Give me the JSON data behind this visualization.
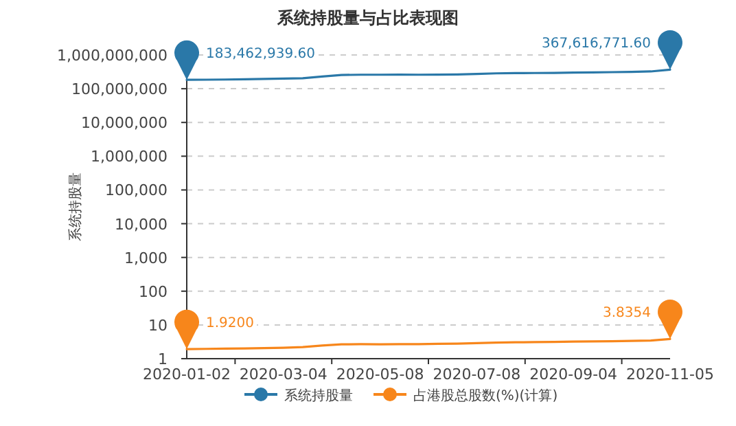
{
  "chart_data": {
    "type": "line",
    "title": "系统持股量与占比表现图",
    "ylabel": "系统持股量",
    "categories": [
      "2020-01-02",
      null,
      null,
      null,
      null,
      "2020-03-04",
      null,
      null,
      null,
      null,
      "2020-05-08",
      null,
      null,
      null,
      null,
      "2020-07-08",
      null,
      null,
      null,
      null,
      "2020-09-04",
      null,
      null,
      null,
      null,
      "2020-11-05"
    ],
    "series": [
      {
        "name": "系统持股量",
        "color": "#2a78a8",
        "values": [
          183462939.6,
          185000000,
          187000000,
          190000000,
          195000000,
          200000000,
          205000000,
          230000000,
          255000000,
          260000000,
          260000000,
          262000000,
          260000000,
          262000000,
          265000000,
          275000000,
          285000000,
          290000000,
          292000000,
          295000000,
          300000000,
          305000000,
          310000000,
          315000000,
          325000000,
          367616771.6
        ]
      },
      {
        "name": "占港股总股数(%)(计算)",
        "color": "#f7861b",
        "values": [
          1.92,
          1.95,
          1.98,
          2.0,
          2.05,
          2.1,
          2.2,
          2.45,
          2.65,
          2.68,
          2.65,
          2.68,
          2.7,
          2.75,
          2.8,
          2.9,
          3.0,
          3.05,
          3.1,
          3.15,
          3.2,
          3.25,
          3.3,
          3.35,
          3.45,
          3.8354
        ]
      }
    ],
    "log": "y",
    "ylim": [
      1,
      1000000000
    ],
    "yticks": [
      1,
      10,
      100,
      {
        "value": 1000,
        "label": "1,000"
      },
      {
        "value": 10000,
        "label": "10,000"
      },
      {
        "value": 100000,
        "label": "100,000"
      },
      {
        "value": 1000000,
        "label": "1,000,000"
      },
      {
        "value": 10000000,
        "label": "10,000,000"
      },
      {
        "value": 100000000,
        "label": "100,000,000"
      },
      {
        "value": 1000000000,
        "label": "1,000,000,000"
      }
    ],
    "grid": "y",
    "legend": "bottom",
    "marker": "none",
    "line_style": "solid",
    "annotations": [
      {
        "text": "183,462,939.60",
        "x": "2020-01-02",
        "y": 183462939.6
      },
      {
        "text": "367,616,771.60",
        "x": "2020-11-05",
        "y": 367616771.6
      },
      {
        "text": "1.9200",
        "x": "2020-01-02",
        "y": 1.92
      },
      {
        "text": "3.8354",
        "x": "2020-11-05",
        "y": 3.8354
      }
    ]
  }
}
